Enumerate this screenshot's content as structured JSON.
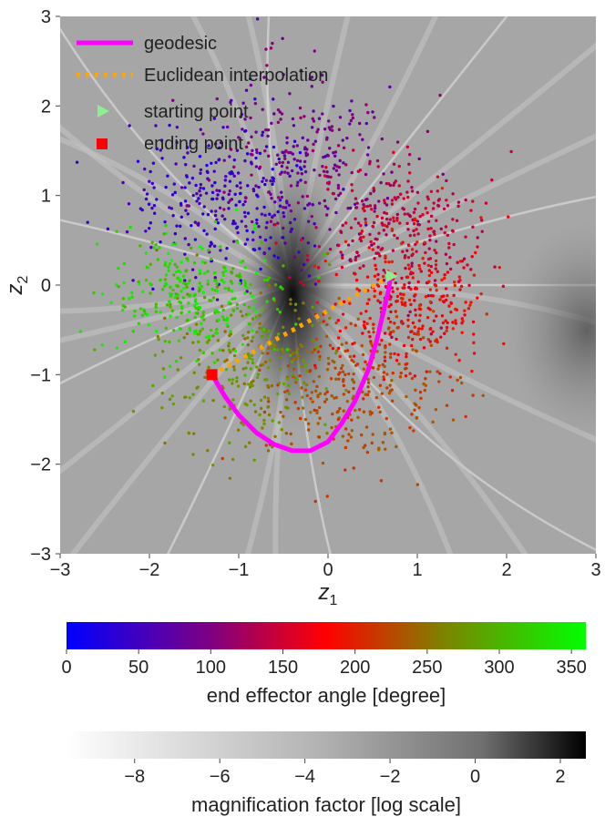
{
  "chart_data": [
    {
      "type": "scatter",
      "xlabel_main": "z",
      "xlabel_sub": "1",
      "ylabel_main": "z",
      "ylabel_sub": "2",
      "xlim": [
        -3,
        3
      ],
      "ylim": [
        -3,
        3
      ],
      "x_ticks": [
        {
          "value": -3,
          "label": "−3"
        },
        {
          "value": -2,
          "label": "−2"
        },
        {
          "value": -1,
          "label": "−1"
        },
        {
          "value": 0,
          "label": "0"
        },
        {
          "value": 1,
          "label": "1"
        },
        {
          "value": 2,
          "label": "2"
        },
        {
          "value": 3,
          "label": "3"
        }
      ],
      "y_ticks": [
        {
          "value": -3,
          "label": "−3"
        },
        {
          "value": -2,
          "label": "−2"
        },
        {
          "value": -1,
          "label": "−1"
        },
        {
          "value": 0,
          "label": "0"
        },
        {
          "value": 1,
          "label": "1"
        },
        {
          "value": 2,
          "label": "2"
        },
        {
          "value": 3,
          "label": "3"
        }
      ],
      "grid": false,
      "legend_position": "top-left",
      "legend": [
        {
          "label": "geodesic",
          "style": "line",
          "color": "#ff00ff"
        },
        {
          "label": "Euclidean interpolation",
          "style": "dotted",
          "color": "#ffa500"
        },
        {
          "label": "starting point",
          "style": "triangle",
          "color": "#90ee90"
        },
        {
          "label": "ending point",
          "style": "square",
          "color": "#ff0000"
        }
      ],
      "background": "grayscale magnification factor map (log scale), darkest near z1≈-0.4, z2≈0",
      "point_clusters": [
        {
          "angle_range": [
            20,
            60
          ],
          "center": [
            -1.1,
            1.0
          ],
          "spread": [
            0.55,
            0.45
          ],
          "count": 300
        },
        {
          "angle_range": [
            60,
            110
          ],
          "center": [
            -0.3,
            1.4
          ],
          "spread": [
            0.5,
            0.45
          ],
          "count": 250
        },
        {
          "angle_range": [
            110,
            160
          ],
          "center": [
            0.8,
            0.6
          ],
          "spread": [
            0.5,
            0.45
          ],
          "count": 300
        },
        {
          "angle_range": [
            160,
            210
          ],
          "center": [
            0.9,
            -0.2
          ],
          "spread": [
            0.45,
            0.4
          ],
          "count": 280
        },
        {
          "angle_range": [
            210,
            250
          ],
          "center": [
            0.3,
            -1.2
          ],
          "spread": [
            0.5,
            0.4
          ],
          "count": 260
        },
        {
          "angle_range": [
            250,
            300
          ],
          "center": [
            -0.9,
            -0.9
          ],
          "spread": [
            0.5,
            0.45
          ],
          "count": 260
        },
        {
          "angle_range": [
            300,
            360
          ],
          "center": [
            -1.5,
            -0.1
          ],
          "spread": [
            0.5,
            0.35
          ],
          "count": 300
        }
      ],
      "series": [
        {
          "name": "geodesic",
          "color": "#ff00ff",
          "x": [
            -1.3,
            -1.15,
            -1.0,
            -0.8,
            -0.6,
            -0.4,
            -0.2,
            0.0,
            0.15,
            0.3,
            0.45,
            0.55,
            0.62,
            0.68,
            0.7
          ],
          "y": [
            -1.0,
            -1.25,
            -1.45,
            -1.65,
            -1.78,
            -1.85,
            -1.85,
            -1.75,
            -1.55,
            -1.3,
            -0.95,
            -0.6,
            -0.3,
            -0.05,
            0.1
          ]
        },
        {
          "name": "Euclidean interpolation",
          "color": "#ffa500",
          "x": [
            -1.3,
            0.7
          ],
          "y": [
            -1.0,
            0.1
          ]
        }
      ],
      "start_point": {
        "x": 0.7,
        "y": 0.1
      },
      "end_point": {
        "x": -1.3,
        "y": -1.0
      }
    },
    {
      "type": "colorbar",
      "label": "end effector angle [degree]",
      "range": [
        0,
        360
      ],
      "ticks": [
        {
          "value": 0,
          "label": "0"
        },
        {
          "value": 50,
          "label": "50"
        },
        {
          "value": 100,
          "label": "100"
        },
        {
          "value": 150,
          "label": "150"
        },
        {
          "value": 200,
          "label": "200"
        },
        {
          "value": 250,
          "label": "250"
        },
        {
          "value": 300,
          "label": "300"
        },
        {
          "value": 350,
          "label": "350"
        }
      ],
      "colors": [
        "#0000ff",
        "#800080",
        "#ff0000",
        "#808000",
        "#00ff00"
      ]
    },
    {
      "type": "colorbar",
      "label": "magnification factor [log scale]",
      "range": [
        -9.6,
        2.6
      ],
      "ticks": [
        {
          "value": -8,
          "label": "−8"
        },
        {
          "value": -6,
          "label": "−6"
        },
        {
          "value": -4,
          "label": "−4"
        },
        {
          "value": -2,
          "label": "−2"
        },
        {
          "value": 0,
          "label": "0"
        },
        {
          "value": 2,
          "label": "2"
        }
      ],
      "colors": [
        "#ffffff",
        "#000000"
      ]
    }
  ]
}
